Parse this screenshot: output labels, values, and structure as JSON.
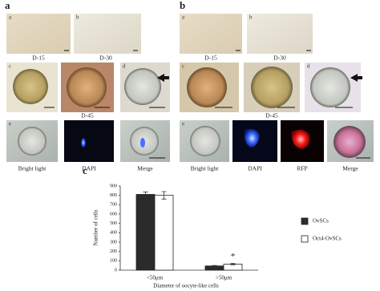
{
  "panel_a": {
    "label": "a",
    "sublabels": [
      "a",
      "b",
      "c",
      "d",
      "e"
    ],
    "day_labels": [
      "D-15",
      "D-30",
      "D-45"
    ],
    "stain_labels": [
      "Bright light",
      "DAPI",
      "Merge"
    ]
  },
  "panel_b": {
    "label": "b",
    "sublabels": [
      "a",
      "b",
      "c",
      "d",
      "e"
    ],
    "day_labels": [
      "D-15",
      "D-30",
      "D-45"
    ],
    "stain_labels": [
      "Bright light",
      "DAPI",
      "RFP",
      "Merge"
    ]
  },
  "chart_data": {
    "type": "bar",
    "label": "c",
    "y_label": "Number of cells",
    "x_label": "Diameter of oocyte-like cells",
    "categories": [
      "<50μm",
      ">50μm"
    ],
    "series": [
      {
        "name": "OvSCs",
        "color": "#2b2b2b",
        "values": [
          810,
          45
        ],
        "errors": [
          25,
          5
        ]
      },
      {
        "name": "Oct4-OvSCs",
        "color": "#ffffff",
        "values": [
          800,
          65
        ],
        "errors": [
          40,
          8
        ]
      }
    ],
    "ylim": [
      0,
      900
    ],
    "yticks": [
      0,
      100,
      200,
      300,
      400,
      500,
      600,
      700,
      800,
      900
    ],
    "annotation": "*"
  }
}
